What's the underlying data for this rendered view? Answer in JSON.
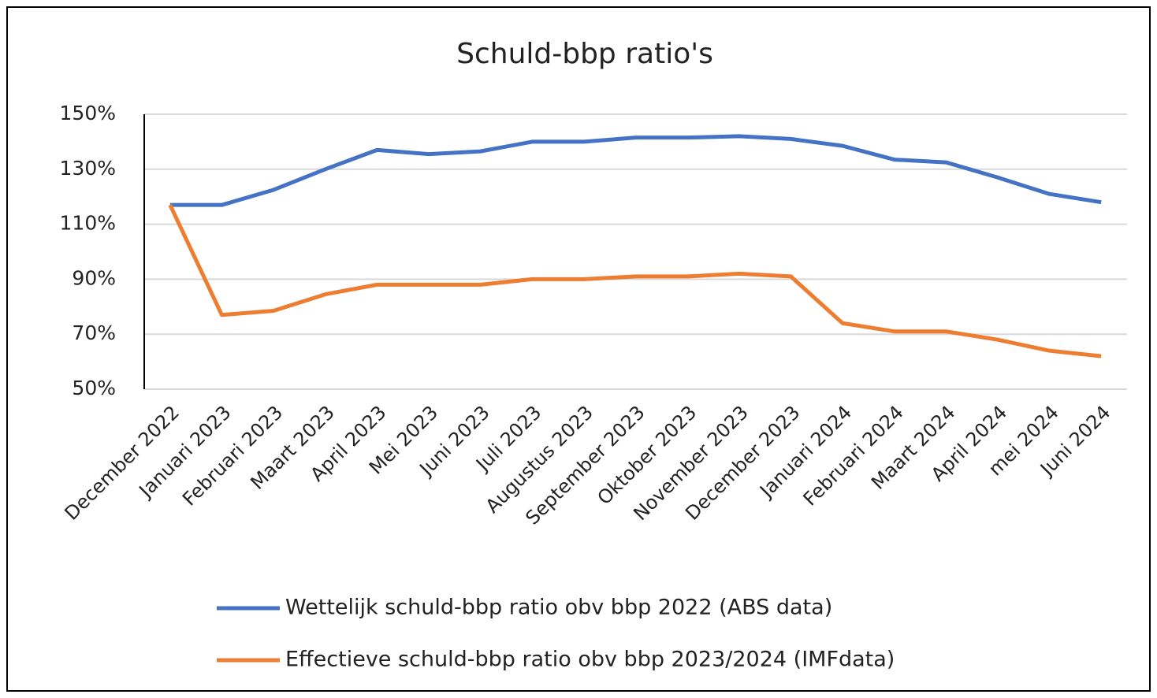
{
  "chart_data": {
    "type": "line",
    "title": "Schuld-bbp ratio's",
    "categories": [
      "December 2022",
      "Januari 2023",
      "Februari 2023",
      "Maart 2023",
      "April 2023",
      "Mei 2023",
      "Juni 2023",
      "Juli 2023",
      "Augustus 2023",
      "September 2023",
      "Oktober 2023",
      "November 2023",
      "December 2023",
      "Januari 2024",
      "Februari 2024",
      "Maart 2024",
      "April 2024",
      "mei 2024",
      "Juni 2024"
    ],
    "series": [
      {
        "name": "Wettelijk schuld-bbp ratio obv bbp 2022 (ABS data)",
        "color": "#4472c4",
        "values": [
          117,
          117,
          122.5,
          130,
          137,
          135.5,
          136.5,
          140,
          140,
          141.5,
          141.5,
          142,
          141,
          138.5,
          133.5,
          132.5,
          127,
          121,
          118
        ]
      },
      {
        "name": "Effectieve schuld-bbp ratio obv bbp 2023/2024 (IMFdata)",
        "color": "#ed7d31",
        "values": [
          117,
          77,
          78.5,
          84.5,
          88,
          88,
          88,
          90,
          90,
          91,
          91,
          92,
          91,
          74,
          71,
          71,
          68,
          64,
          62
        ]
      }
    ],
    "ylim": [
      50,
      150
    ],
    "yticks": [
      {
        "value": 50,
        "label": "50%"
      },
      {
        "value": 70,
        "label": "70%"
      },
      {
        "value": 90,
        "label": "90%"
      },
      {
        "value": 110,
        "label": "110%"
      },
      {
        "value": 130,
        "label": "130%"
      },
      {
        "value": 150,
        "label": "150%"
      }
    ],
    "grid": true
  }
}
